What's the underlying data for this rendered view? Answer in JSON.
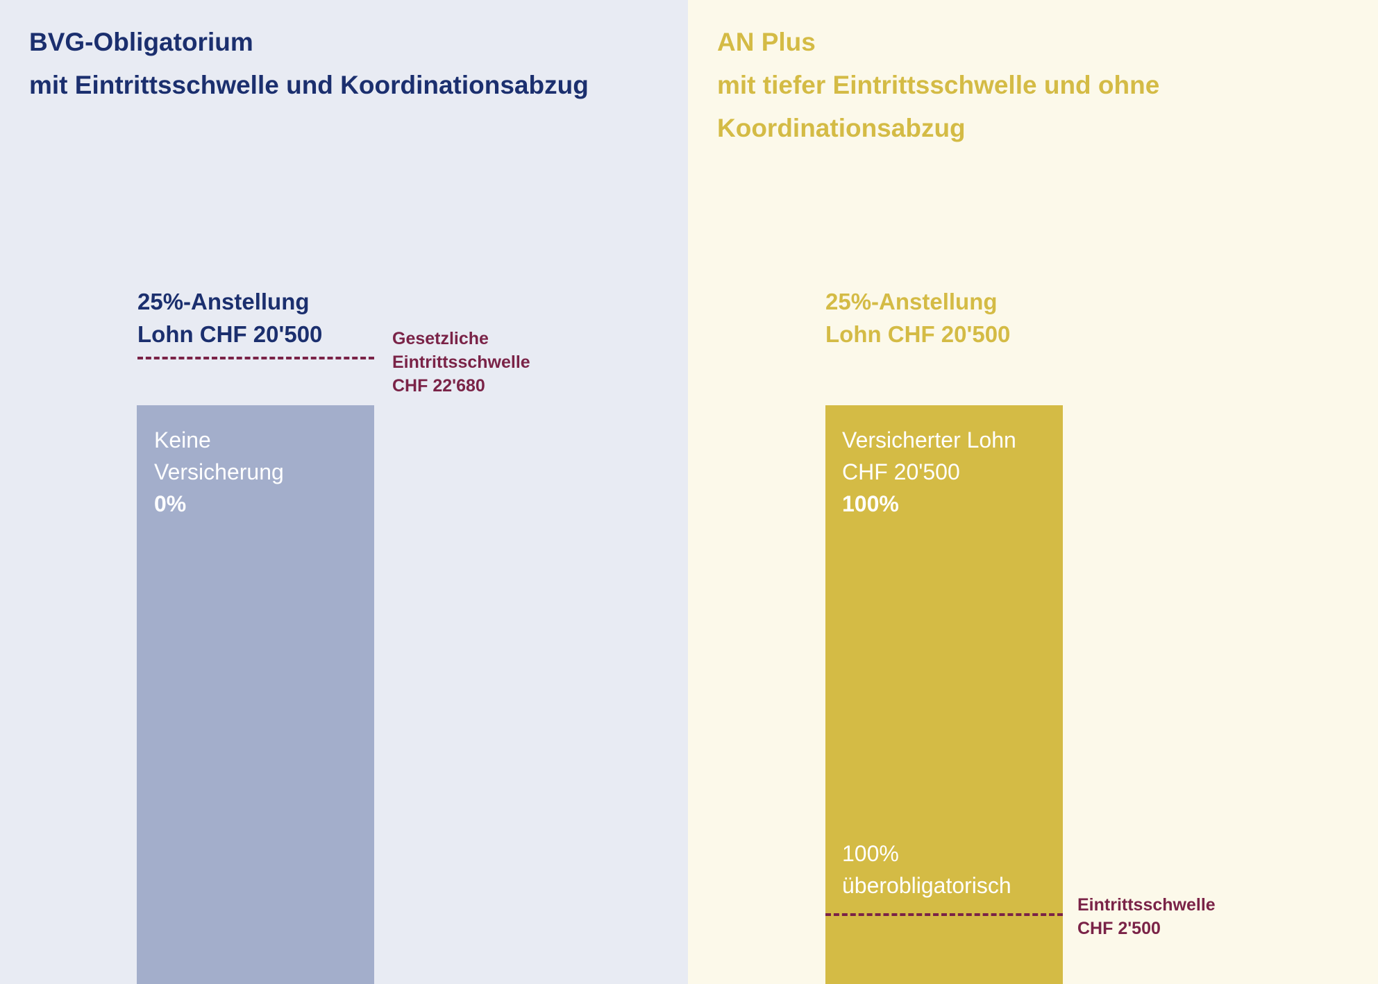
{
  "left": {
    "title": [
      "BVG-Obligatorium",
      "mit Eintrittsschwelle und Koordinationsabzug"
    ],
    "bar_header": [
      "25%-Anstellung",
      "Lohn CHF 20'500"
    ],
    "threshold_label": [
      "Gesetzliche",
      "Eintrittsschwelle",
      "CHF 22'680"
    ],
    "bar_text": [
      "Keine",
      "Versicherung"
    ],
    "bar_percent": "0%"
  },
  "right": {
    "title": [
      "AN Plus",
      "mit tiefer Eintrittsschwelle und ohne",
      "Koordinationsabzug"
    ],
    "bar_header": [
      "25%-Anstellung",
      "Lohn CHF 20'500"
    ],
    "bar_text": [
      "Versicherter Lohn",
      "CHF 20'500"
    ],
    "bar_percent": "100%",
    "lower_text": [
      "100%",
      "überobligatorisch"
    ],
    "threshold_label": [
      "Eintrittsschwelle",
      "CHF 2'500"
    ]
  }
}
